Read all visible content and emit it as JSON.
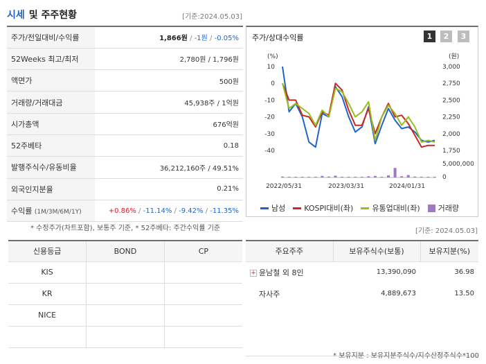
{
  "header": {
    "title_part1": "시세",
    "title_part2": "및 주주현황",
    "ref_date": "[기준:2024.05.03]"
  },
  "info": {
    "price_label": "주가/전일대비/수익률",
    "price": "1,866원",
    "change": "-1원",
    "return": "-0.05%",
    "w52_label": "52Weeks 최고/최저",
    "w52_value": "2,780원 / 1,796원",
    "par_label": "액면가",
    "par_value": "500원",
    "volume_label": "거래량/거래대금",
    "volume_value": "45,938주 / 1억원",
    "mcap_label": "시가총액",
    "mcap_value": "676억원",
    "beta_label": "52주베타",
    "beta_value": "0.18",
    "shares_label": "발행주식수/유동비율",
    "shares_value": "36,212,160주 / 49.51%",
    "foreign_label": "외국인지분율",
    "foreign_value": "0.21%",
    "ret_label": "수익률",
    "ret_periods": "(1M/3M/6M/1Y)",
    "ret_1m": "+0.86%",
    "ret_3m": "-11.14%",
    "ret_6m": "-9.42%",
    "ret_1y": "-11.35%"
  },
  "note1": "* 수정주가(차트포함), 보통주 기준, * 52주베타: 주간수익률 기준",
  "chart": {
    "title": "주가/상대수익률",
    "pages": [
      "1",
      "2",
      "3"
    ],
    "left_unit": "(%)",
    "right_unit": "(원)",
    "legend": [
      "남성",
      "KOSPI대비(좌)",
      "유통업대비(좌)",
      "거래량"
    ]
  },
  "chart_data": {
    "type": "line",
    "x_ticks": [
      "2022/05/31",
      "2023/03/31",
      "2024/01/31"
    ],
    "y_left": {
      "ticks": [
        10,
        0,
        -10,
        -20,
        -30,
        -40
      ],
      "range": [
        -40,
        10
      ]
    },
    "y_right": {
      "ticks": [
        "3,000",
        "2,750",
        "2,500",
        "2,250",
        "2,000",
        "1,750"
      ],
      "range": [
        1750,
        3000
      ]
    },
    "volume_axis": [
      "5,000,000",
      "0"
    ],
    "series": [
      {
        "name": "남성",
        "color": "#1e64c8",
        "axis": "left",
        "values": [
          10,
          -17,
          -12,
          -20,
          -35,
          -38,
          -18,
          -20,
          -2,
          -8,
          -20,
          -29,
          -26,
          -14,
          -36,
          -25,
          -15,
          -22,
          -27,
          -26,
          -29,
          -34,
          -35,
          -34
        ]
      },
      {
        "name": "KOSPI대비(좌)",
        "color": "#c8281e",
        "axis": "left",
        "values": [
          0,
          -10,
          -10,
          -19,
          -20,
          -26,
          -17,
          -19,
          0,
          -4,
          -16,
          -25,
          -25,
          -15,
          -30,
          -20,
          -12,
          -20,
          -19,
          -24,
          -31,
          -38,
          -37,
          -37
        ]
      },
      {
        "name": "유통업대비(좌)",
        "color": "#96be1e",
        "axis": "left",
        "values": [
          0,
          -15,
          -12,
          -15,
          -18,
          -25,
          -16,
          -20,
          -3,
          -5,
          -12,
          -20,
          -17,
          -11,
          -34,
          -20,
          -13,
          -18,
          -25,
          -20,
          -26,
          -35,
          -34,
          -35
        ]
      },
      {
        "name": "거래량",
        "color": "#a078c8",
        "axis": "volume",
        "values": [
          0.3,
          0.15,
          0.1,
          0.1,
          0.1,
          0.15,
          0.5,
          0.3,
          0.6,
          0.2,
          0.2,
          0.2,
          0.2,
          0.4,
          0.5,
          0.2,
          0.7,
          3.1,
          0.4,
          0.8,
          0.3,
          0.2,
          0.1,
          0.15
        ]
      }
    ]
  },
  "ref_date2": "[기준: 2024.05.03]",
  "credit": {
    "headers": [
      "신용등급",
      "BOND",
      "CP"
    ],
    "rows": [
      [
        "KIS",
        "",
        ""
      ],
      [
        "KR",
        "",
        ""
      ],
      [
        "NICE",
        "",
        ""
      ],
      [
        "",
        "",
        ""
      ]
    ]
  },
  "holders": {
    "headers": [
      "주요주주",
      "보유주식수(보통)",
      "보유지분(%)"
    ],
    "rows": [
      {
        "name": "윤남철 외 8인",
        "shares": "13,390,090",
        "pct": "36.98"
      },
      {
        "name": "자사주",
        "shares": "4,889,673",
        "pct": "13.50"
      }
    ]
  },
  "note2": "* 보유지분 : 보유지분주식수/지수산정주식수*100"
}
